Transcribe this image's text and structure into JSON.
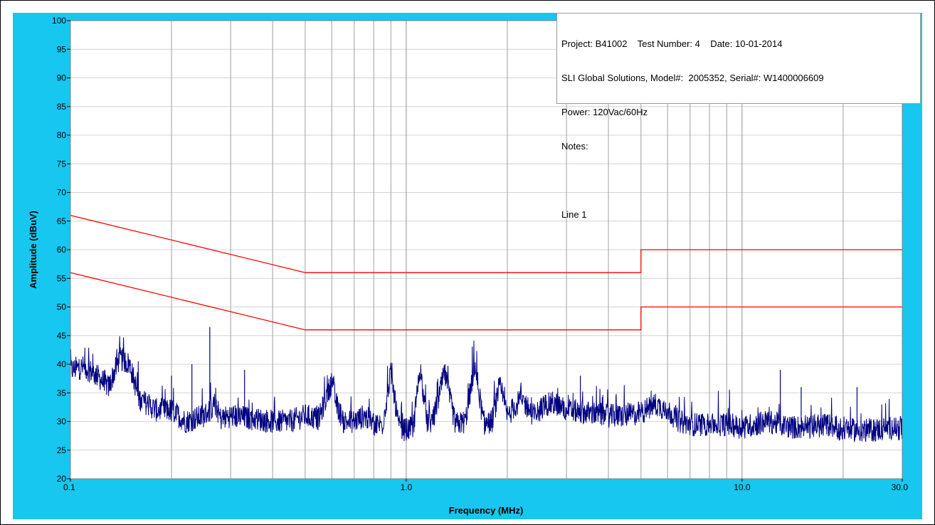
{
  "chart_data": {
    "type": "line",
    "xscale": "log",
    "xlim": [
      0.1,
      30.0
    ],
    "ylim": [
      20,
      100
    ],
    "xlabel": "Frequency (MHz)",
    "ylabel": "Amplitude (dBuV)",
    "grid": true,
    "y_ticks": [
      "100",
      "95",
      "90",
      "85",
      "80",
      "75",
      "70",
      "65",
      "60",
      "55",
      "50",
      "45",
      "40",
      "35",
      "30",
      "25",
      "20"
    ],
    "x_tick_labels": [
      {
        "x": 0.1,
        "label": "0.1"
      },
      {
        "x": 1.0,
        "label": "1.0"
      },
      {
        "x": 10.0,
        "label": "10.0"
      },
      {
        "x": 30.0,
        "label": "30.0"
      }
    ],
    "colors": {
      "limit": "#ff0000",
      "trace": "#000080",
      "grid": "#a0a0a0",
      "panel": "#17c7ef"
    },
    "limit_lines": [
      {
        "x": [
          0.1,
          0.5,
          0.5,
          5.0,
          5.0,
          30.0
        ],
        "y": [
          66,
          56,
          56,
          56,
          60,
          60
        ]
      },
      {
        "x": [
          0.1,
          0.5,
          0.5,
          5.0,
          5.0,
          30.0
        ],
        "y": [
          56,
          46,
          46,
          46,
          50,
          50
        ]
      }
    ],
    "trace": {
      "x": [
        0.1,
        0.11,
        0.12,
        0.13,
        0.14,
        0.15,
        0.16,
        0.18,
        0.2,
        0.22,
        0.25,
        0.27,
        0.28,
        0.3,
        0.35,
        0.4,
        0.45,
        0.5,
        0.55,
        0.6,
        0.62,
        0.65,
        0.7,
        0.75,
        0.8,
        0.85,
        0.9,
        0.95,
        1.0,
        1.05,
        1.1,
        1.15,
        1.2,
        1.3,
        1.4,
        1.5,
        1.6,
        1.7,
        1.8,
        1.9,
        2.0,
        2.2,
        2.4,
        2.6,
        2.8,
        3.0,
        3.5,
        4.0,
        4.5,
        5.0,
        5.5,
        6.0,
        6.5,
        7.0,
        8.0,
        9.0,
        10.0,
        12.0,
        14.0,
        16.0,
        18.0,
        20.0,
        22.0,
        25.0,
        28.0,
        30.0
      ],
      "y": [
        39,
        39.5,
        38,
        36,
        41,
        40,
        34,
        32,
        32,
        30,
        31,
        33,
        30.5,
        31,
        30.5,
        30,
        30,
        31,
        30.5,
        37,
        33,
        30,
        30,
        31,
        29.5,
        29.5,
        38.5,
        29,
        28.5,
        29,
        39.5,
        30,
        30,
        38.5,
        29.5,
        30,
        40,
        29.5,
        30,
        36,
        31,
        34,
        31,
        33,
        33,
        32,
        31.5,
        31,
        31,
        31.5,
        33,
        32,
        30,
        29.5,
        29.5,
        29.5,
        29,
        30,
        29,
        29,
        29.5,
        28.5,
        28.5,
        28.5,
        29,
        28.5
      ]
    },
    "spikes": [
      {
        "x": 0.2,
        "y": 38
      },
      {
        "x": 0.23,
        "y": 40
      },
      {
        "x": 0.26,
        "y": 46.5
      },
      {
        "x": 0.33,
        "y": 39
      },
      {
        "x": 3.3,
        "y": 38
      },
      {
        "x": 13.0,
        "y": 39
      },
      {
        "x": 15.0,
        "y": 36
      },
      {
        "x": 22.0,
        "y": 36
      }
    ]
  },
  "info": {
    "line1": "Project: B41002    Test Number: 4    Date: 10-01-2014",
    "line2": "SLI Global Solutions, Model#:  2005352, Serial#: W1400006609",
    "line3": "Power: 120Vac/60Hz",
    "line4": "Notes:",
    "line5": "",
    "line6": "Line 1"
  }
}
